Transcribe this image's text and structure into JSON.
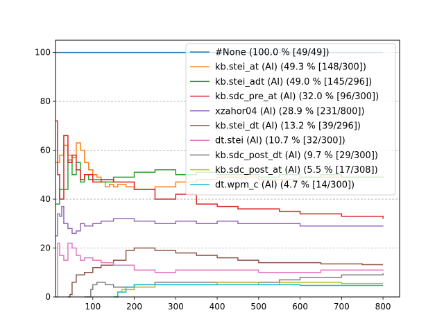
{
  "chart_data": {
    "type": "line",
    "xlim": [
      10,
      840
    ],
    "ylim": [
      0,
      105
    ],
    "x_ticks": [
      100,
      200,
      300,
      400,
      500,
      600,
      700,
      800
    ],
    "y_ticks": [
      0,
      20,
      40,
      60,
      80,
      100
    ],
    "grid": "horizontal dashed",
    "legend_position": "top-right",
    "series": [
      {
        "name": "#None (100.0 % [49/49])",
        "color": "#1f77b4",
        "x": [
          10,
          800
        ],
        "y": [
          100,
          100
        ]
      },
      {
        "name": "kb.stei_at (AI) (49.3 % [148/300])",
        "color": "#ff7f0e",
        "x": [
          10,
          20,
          30,
          40,
          50,
          60,
          70,
          80,
          90,
          100,
          110,
          120,
          130,
          140,
          150,
          160,
          180,
          200,
          250,
          300,
          350,
          400,
          450,
          500,
          550,
          600,
          650,
          700,
          750,
          800
        ],
        "y": [
          55,
          58,
          62,
          58,
          57,
          63,
          60,
          55,
          52,
          50,
          49,
          47,
          45,
          46,
          45,
          46,
          45,
          44,
          45,
          47,
          48,
          49,
          49,
          48,
          48,
          49,
          49,
          49,
          49,
          49.3
        ]
      },
      {
        "name": "kb.stei_adt (AI) (49.0 % [145/296])",
        "color": "#2ca02c",
        "x": [
          10,
          20,
          30,
          40,
          50,
          60,
          70,
          80,
          90,
          100,
          120,
          150,
          200,
          250,
          300,
          350,
          400,
          450,
          500,
          550,
          600,
          650,
          700,
          750,
          800
        ],
        "y": [
          38,
          44,
          44,
          56,
          50,
          55,
          47,
          50,
          48,
          48,
          47,
          49,
          51,
          52,
          50,
          51,
          50,
          50,
          49,
          50,
          49,
          50,
          49,
          49,
          49
        ]
      },
      {
        "name": "kb.sdc_pre_at (AI) (32.0 % [96/300])",
        "color": "#d62728",
        "x": [
          10,
          15,
          20,
          30,
          40,
          50,
          60,
          70,
          80,
          100,
          120,
          150,
          200,
          250,
          300,
          350,
          400,
          450,
          500,
          550,
          600,
          650,
          700,
          750,
          800
        ],
        "y": [
          72,
          50,
          40,
          66,
          55,
          58,
          52,
          48,
          50,
          47,
          48,
          47,
          44,
          40,
          42,
          38,
          37,
          36,
          36,
          35,
          34,
          34,
          33,
          33,
          32
        ]
      },
      {
        "name": "xzahor04 (AI) (28.9 % [231/800])",
        "color": "#9467bd",
        "x": [
          10,
          15,
          20,
          25,
          30,
          40,
          50,
          60,
          70,
          80,
          100,
          120,
          150,
          200,
          250,
          300,
          350,
          400,
          450,
          500,
          550,
          600,
          650,
          700,
          750,
          800
        ],
        "y": [
          25,
          34,
          33,
          37,
          30,
          28,
          26,
          27,
          30,
          29,
          30,
          31,
          32,
          31,
          30,
          31,
          30,
          31,
          30,
          30,
          30,
          29,
          29,
          29,
          29,
          28.9
        ]
      },
      {
        "name": "kb.stei_dt (AI) (13.2 % [39/296])",
        "color": "#8c564b",
        "x": [
          40,
          45,
          50,
          60,
          80,
          100,
          120,
          150,
          180,
          200,
          220,
          250,
          300,
          350,
          400,
          450,
          500,
          550,
          600,
          650,
          700,
          750,
          800
        ],
        "y": [
          0,
          1,
          6,
          9,
          10,
          12,
          13,
          15,
          19,
          20,
          20,
          19,
          18,
          17,
          16,
          15,
          14,
          14,
          14,
          13.5,
          13.5,
          13.2,
          13.2
        ]
      },
      {
        "name": "dt.stei (AI) (10.7 % [32/300])",
        "color": "#e377c2",
        "x": [
          10,
          15,
          20,
          30,
          40,
          50,
          60,
          70,
          80,
          100,
          120,
          150,
          200,
          250,
          300,
          350,
          400,
          450,
          500,
          550,
          600,
          650,
          700,
          750,
          800
        ],
        "y": [
          0,
          22,
          17,
          15,
          22,
          20,
          17,
          15,
          16,
          15,
          14,
          13,
          11,
          10,
          11,
          11,
          11,
          11,
          10,
          10,
          10,
          11,
          11,
          11,
          10.7
        ]
      },
      {
        "name": "kb.sdc_post_dt (AI) (9.7 % [29/300])",
        "color": "#7f7f7f",
        "x": [
          80,
          90,
          95,
          100,
          110,
          130,
          150,
          200,
          250,
          300,
          350,
          400,
          450,
          500,
          550,
          600,
          650,
          700,
          750,
          800
        ],
        "y": [
          0,
          0,
          3,
          5,
          6,
          5,
          4,
          5,
          6,
          6,
          6,
          6,
          6,
          6,
          7,
          8,
          8,
          9,
          9,
          9.7
        ]
      },
      {
        "name": "kb.sdc_post_at (AI) (5.5 % [17/308])",
        "color": "#bcbd22",
        "x": [
          150,
          160,
          170,
          200,
          250,
          300,
          350,
          400,
          450,
          500,
          550,
          600,
          650,
          700,
          750,
          800
        ],
        "y": [
          0,
          2,
          3,
          4,
          5,
          5,
          5,
          6,
          6,
          5,
          6,
          6,
          6,
          5.5,
          5.5,
          5.5
        ]
      },
      {
        "name": "dt.wpm_c (AI) (4.7 % [14/300])",
        "color": "#17becf",
        "x": [
          150,
          160,
          180,
          200,
          250,
          300,
          350,
          400,
          450,
          500,
          550,
          600,
          650,
          700,
          750,
          800
        ],
        "y": [
          0,
          2,
          4,
          5,
          5,
          5,
          5,
          5,
          5,
          5,
          5,
          4.7,
          4.7,
          4.7,
          4.7,
          4.7
        ]
      }
    ]
  }
}
